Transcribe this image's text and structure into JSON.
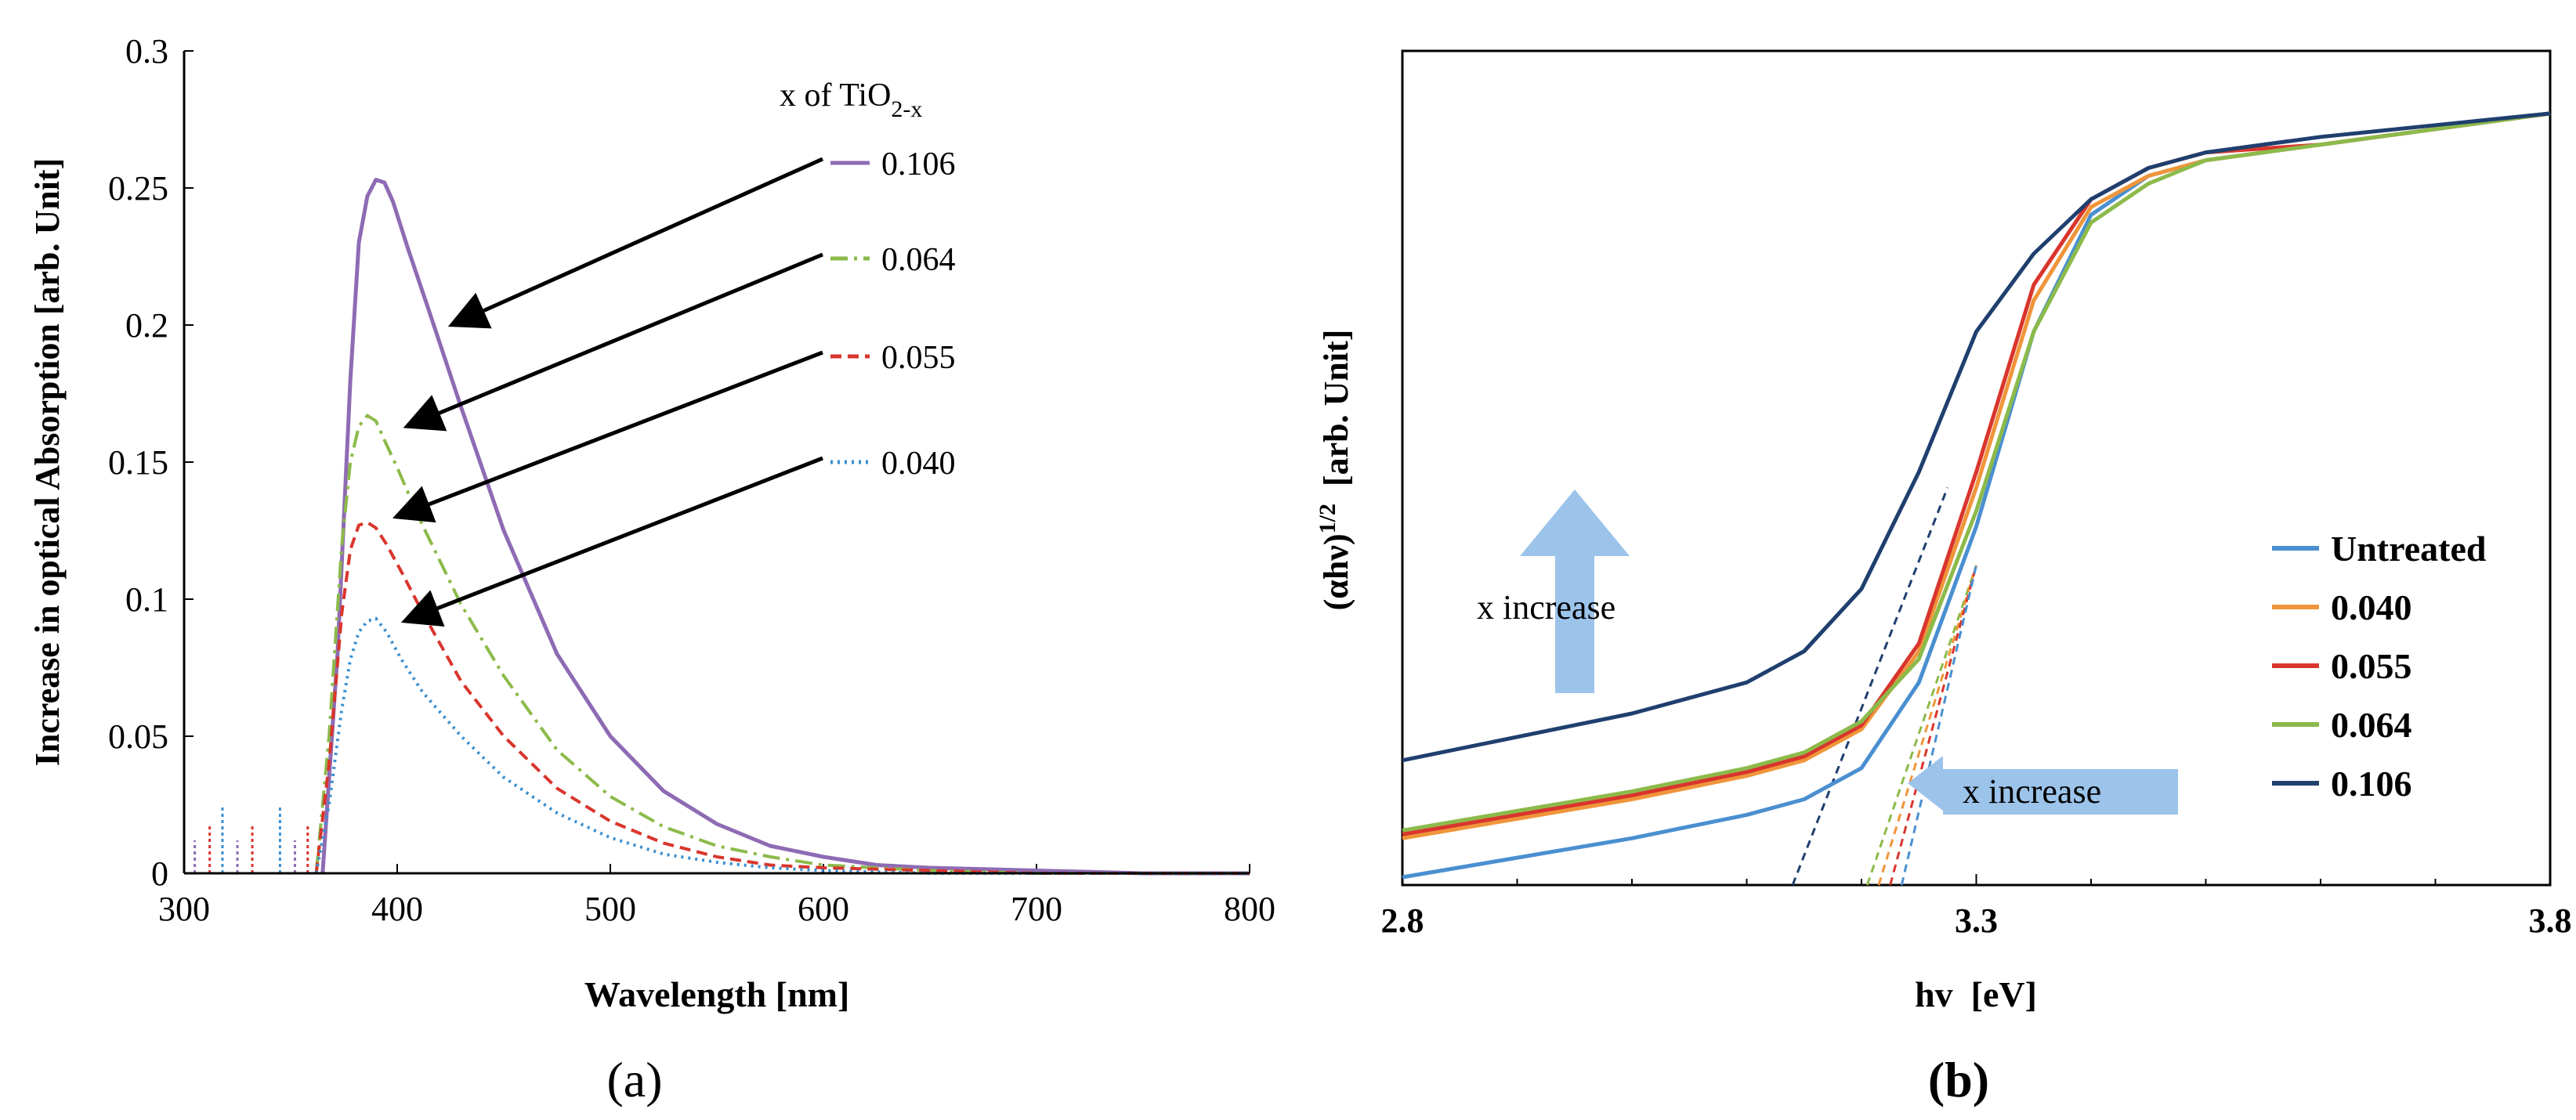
{
  "chart_data": [
    {
      "panel_label": "(a)",
      "type": "line",
      "title": "",
      "xlabel": "Wavelength [nm]",
      "ylabel": "Increase in optical Absorption [arb. Unit]",
      "xlim": [
        300,
        800
      ],
      "ylim": [
        0,
        0.3
      ],
      "xticks": [
        "300",
        "400",
        "500",
        "600",
        "700",
        "800"
      ],
      "yticks": [
        "0",
        "0.05",
        "0.1",
        "0.15",
        "0.2",
        "0.25",
        "0.3"
      ],
      "legend_title": "x of TiO",
      "legend_title_sub": "2-x",
      "legend_position": "top-right",
      "series": [
        {
          "name": "0.106",
          "color": "#8e6bb4",
          "dash": "solid",
          "x": [
            365,
            372,
            378,
            382,
            386,
            390,
            394,
            398,
            405,
            415,
            430,
            450,
            475,
            500,
            525,
            550,
            575,
            600,
            625,
            650,
            700,
            750,
            800
          ],
          "y": [
            0.0,
            0.08,
            0.18,
            0.23,
            0.247,
            0.253,
            0.252,
            0.245,
            0.228,
            0.205,
            0.17,
            0.125,
            0.08,
            0.05,
            0.03,
            0.018,
            0.01,
            0.006,
            0.003,
            0.002,
            0.001,
            0.0,
            0.0
          ]
        },
        {
          "name": "0.064",
          "color": "#8cba4a",
          "dash": "dashdot",
          "x": [
            362,
            368,
            374,
            378,
            382,
            386,
            390,
            394,
            400,
            410,
            430,
            450,
            475,
            500,
            525,
            550,
            575,
            600,
            650,
            700,
            800
          ],
          "y": [
            0.0,
            0.05,
            0.12,
            0.15,
            0.163,
            0.167,
            0.165,
            0.158,
            0.148,
            0.13,
            0.098,
            0.072,
            0.045,
            0.028,
            0.017,
            0.01,
            0.006,
            0.003,
            0.001,
            0.0,
            0.0
          ]
        },
        {
          "name": "0.055",
          "color": "#d9352c",
          "dash": "dashed",
          "x": [
            362,
            368,
            374,
            378,
            382,
            386,
            390,
            395,
            402,
            412,
            430,
            450,
            475,
            500,
            525,
            550,
            575,
            600,
            650,
            700,
            800
          ],
          "y": [
            0.0,
            0.04,
            0.095,
            0.118,
            0.127,
            0.128,
            0.126,
            0.12,
            0.11,
            0.095,
            0.07,
            0.05,
            0.031,
            0.019,
            0.011,
            0.006,
            0.003,
            0.002,
            0.001,
            0.0,
            0.0
          ]
        },
        {
          "name": "0.040",
          "color": "#3a8fd1",
          "dash": "dotted",
          "x": [
            362,
            368,
            374,
            378,
            382,
            386,
            390,
            395,
            402,
            412,
            430,
            450,
            475,
            500,
            525,
            550,
            575,
            600,
            650,
            800
          ],
          "y": [
            0.0,
            0.025,
            0.06,
            0.078,
            0.088,
            0.092,
            0.093,
            0.088,
            0.078,
            0.066,
            0.05,
            0.035,
            0.022,
            0.013,
            0.007,
            0.004,
            0.002,
            0.001,
            0.0,
            0.0
          ]
        }
      ],
      "annotations": [
        {
          "text": "arrow",
          "from_label": "0.106",
          "to_xy": [
            420,
            0.2
          ]
        },
        {
          "text": "arrow",
          "from_label": "0.064",
          "to_xy": [
            399,
            0.163
          ]
        },
        {
          "text": "arrow",
          "from_label": "0.055",
          "to_xy": [
            394,
            0.13
          ]
        },
        {
          "text": "arrow",
          "from_label": "0.040",
          "to_xy": [
            398,
            0.092
          ]
        }
      ]
    },
    {
      "panel_label": "(b)",
      "type": "line",
      "title": "",
      "xlabel": "hv  [eV]",
      "ylabel": "(αhν)",
      "ylabel_sup": "1/2",
      "ylabel_suffix": "  [arb. Unit]",
      "xlim": [
        2.8,
        3.8
      ],
      "ylim": [
        0,
        1
      ],
      "xticks": [
        "2.8",
        "3.3",
        "3.8"
      ],
      "legend_position": "bottom-right",
      "series": [
        {
          "name": "Untreated",
          "color": "#4a8fd0",
          "x": [
            2.8,
            2.9,
            3.0,
            3.1,
            3.15,
            3.2,
            3.25,
            3.3,
            3.35,
            3.4,
            3.45,
            3.5,
            3.6,
            3.7,
            3.8
          ],
          "y": [
            0.0,
            0.025,
            0.05,
            0.08,
            0.1,
            0.14,
            0.25,
            0.45,
            0.7,
            0.85,
            0.9,
            0.92,
            0.94,
            0.96,
            0.98
          ]
        },
        {
          "name": "0.040",
          "color": "#f0953a",
          "x": [
            2.8,
            2.9,
            3.0,
            3.1,
            3.15,
            3.2,
            3.25,
            3.3,
            3.35,
            3.4,
            3.45,
            3.5,
            3.6,
            3.7,
            3.8
          ],
          "y": [
            0.05,
            0.075,
            0.1,
            0.13,
            0.15,
            0.19,
            0.29,
            0.5,
            0.74,
            0.86,
            0.9,
            0.92,
            0.94,
            0.96,
            0.98
          ]
        },
        {
          "name": "0.055",
          "color": "#d9352c",
          "x": [
            2.8,
            2.9,
            3.0,
            3.1,
            3.15,
            3.2,
            3.25,
            3.3,
            3.35,
            3.4,
            3.45,
            3.5,
            3.6,
            3.7,
            3.8
          ],
          "y": [
            0.055,
            0.08,
            0.105,
            0.135,
            0.155,
            0.195,
            0.3,
            0.52,
            0.76,
            0.87,
            0.91,
            0.93,
            0.94,
            0.96,
            0.98
          ]
        },
        {
          "name": "0.064",
          "color": "#8cba4a",
          "x": [
            2.8,
            2.9,
            3.0,
            3.1,
            3.15,
            3.2,
            3.25,
            3.3,
            3.35,
            3.4,
            3.45,
            3.5,
            3.6,
            3.7,
            3.8
          ],
          "y": [
            0.06,
            0.085,
            0.11,
            0.14,
            0.16,
            0.2,
            0.28,
            0.47,
            0.7,
            0.84,
            0.89,
            0.92,
            0.94,
            0.96,
            0.98
          ]
        },
        {
          "name": "0.106",
          "color": "#1f3f6e",
          "x": [
            2.8,
            2.9,
            3.0,
            3.1,
            3.15,
            3.2,
            3.25,
            3.3,
            3.35,
            3.4,
            3.45,
            3.5,
            3.6,
            3.7,
            3.8
          ],
          "y": [
            0.15,
            0.18,
            0.21,
            0.25,
            0.29,
            0.37,
            0.52,
            0.7,
            0.8,
            0.87,
            0.91,
            0.93,
            0.95,
            0.965,
            0.98
          ]
        }
      ],
      "tangents": [
        {
          "color": "#1f3f6e",
          "x": [
            3.14,
            3.275
          ],
          "y": [
            0.0,
            0.5
          ]
        },
        {
          "color": "#8cba4a",
          "x": [
            3.205,
            3.3
          ],
          "y": [
            0.0,
            0.4
          ]
        },
        {
          "color": "#f0953a",
          "x": [
            3.215,
            3.3
          ],
          "y": [
            0.0,
            0.4
          ]
        },
        {
          "color": "#d9352c",
          "x": [
            3.225,
            3.3
          ],
          "y": [
            0.0,
            0.4
          ]
        },
        {
          "color": "#4a8fd0",
          "x": [
            3.235,
            3.3
          ],
          "y": [
            0.0,
            0.4
          ]
        }
      ],
      "annotations": [
        {
          "text": "x increase",
          "direction": "up"
        },
        {
          "text": "x increase",
          "direction": "left"
        }
      ]
    }
  ]
}
